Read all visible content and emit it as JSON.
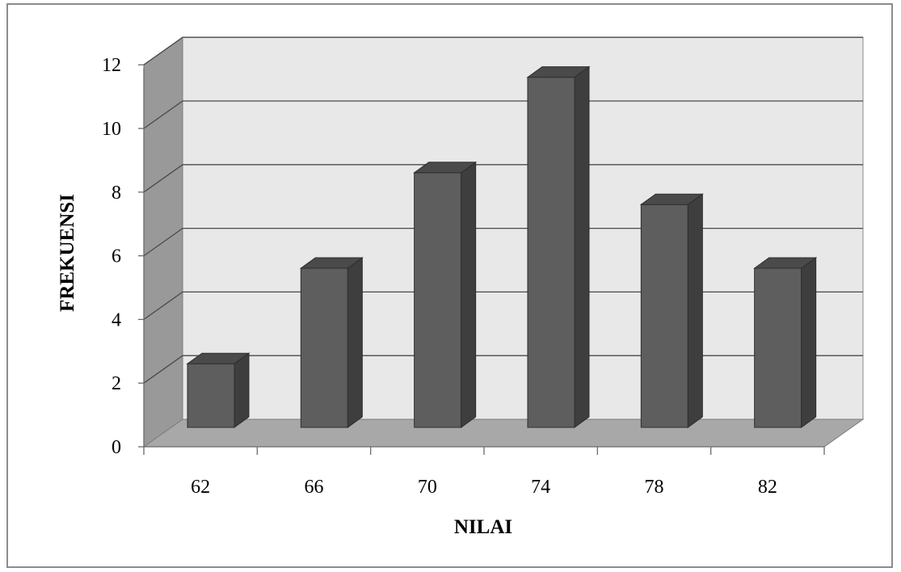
{
  "chart_data": {
    "type": "bar",
    "title": "",
    "xlabel": "NILAI",
    "ylabel": "FREKUENSI",
    "categories": [
      "62",
      "66",
      "70",
      "74",
      "78",
      "82"
    ],
    "values": [
      2,
      5,
      8,
      11,
      7,
      5
    ],
    "ylim": [
      0,
      12
    ],
    "yticks": [
      "0",
      "2",
      "4",
      "6",
      "8",
      "10",
      "12"
    ],
    "grid": true,
    "legend": "none",
    "style": "3d",
    "colors": {
      "bar_front": "#5e5e5e",
      "bar_side": "#3e3e3e",
      "bar_top": "#4a4a4a",
      "back_wall": "#e8e8e8",
      "side_wall": "#999999",
      "floor": "#a8a8a8",
      "gridline": "#4a4a4a"
    }
  }
}
